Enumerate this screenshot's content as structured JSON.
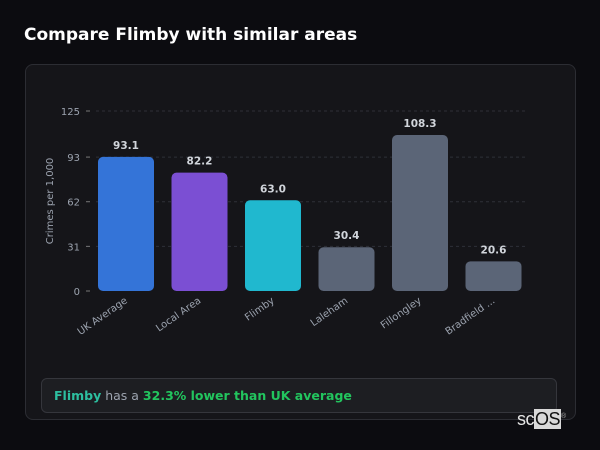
{
  "title": "Compare Flimby with similar areas",
  "chart_data": {
    "type": "bar",
    "title": "",
    "xlabel": "",
    "ylabel": "Crimes per 1,000",
    "ylim": [
      0,
      125
    ],
    "yticks": [
      0,
      31,
      62,
      93,
      125
    ],
    "grid": true,
    "categories": [
      "UK Average",
      "Local Area",
      "Flimby",
      "Laleham",
      "Fillongley",
      "Bradfield ..."
    ],
    "values": [
      93.1,
      82.2,
      63.0,
      30.4,
      108.3,
      20.6
    ],
    "value_labels": [
      "93.1",
      "82.2",
      "63.0",
      "30.4",
      "108.3",
      "20.6"
    ],
    "colors": [
      "#3474d8",
      "#7b4fd3",
      "#20b8cf",
      "#5b6577",
      "#5b6577",
      "#5b6577"
    ]
  },
  "summary": {
    "area": "Flimby",
    "middle": " has a ",
    "highlight": "32.3% lower than UK average"
  },
  "logo": {
    "text1": "sc",
    "text2": "OS",
    "mark": "®"
  }
}
